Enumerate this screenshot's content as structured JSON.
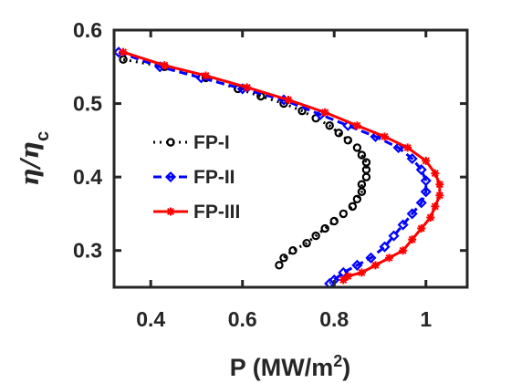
{
  "chart_data": {
    "type": "line",
    "xlabel": {
      "main": "P (MW/m",
      "sup": "2",
      "close": ")"
    },
    "ylabel": {
      "base": "η/η",
      "sub": "c"
    },
    "xlim": [
      0.32,
      1.09
    ],
    "ylim": [
      0.25,
      0.6
    ],
    "xticks": [
      0.4,
      0.6,
      0.8,
      1.0
    ],
    "xtick_labels": [
      "0.4",
      "0.6",
      "0.8",
      "1"
    ],
    "yticks": [
      0.3,
      0.4,
      0.5,
      0.6
    ],
    "ytick_labels": [
      "0.3",
      "0.4",
      "0.5",
      "0.6"
    ],
    "grid": false,
    "legend_position": "center-left",
    "series": [
      {
        "name": "FP-I",
        "color": "#000000",
        "line_style": "dotted",
        "marker": "circle",
        "x": [
          0.34,
          0.43,
          0.52,
          0.59,
          0.64,
          0.69,
          0.73,
          0.76,
          0.79,
          0.81,
          0.83,
          0.85,
          0.86,
          0.87,
          0.87,
          0.87,
          0.86,
          0.86,
          0.85,
          0.84,
          0.82,
          0.8,
          0.78,
          0.76,
          0.74,
          0.71,
          0.69,
          0.68
        ],
        "y": [
          0.56,
          0.55,
          0.535,
          0.52,
          0.51,
          0.5,
          0.49,
          0.48,
          0.47,
          0.46,
          0.45,
          0.44,
          0.43,
          0.42,
          0.41,
          0.4,
          0.39,
          0.38,
          0.37,
          0.36,
          0.35,
          0.34,
          0.33,
          0.32,
          0.31,
          0.3,
          0.29,
          0.28
        ]
      },
      {
        "name": "FP-II",
        "color": "#0000FF",
        "line_style": "dashed",
        "marker": "diamond",
        "x": [
          0.33,
          0.42,
          0.51,
          0.6,
          0.69,
          0.77,
          0.83,
          0.89,
          0.94,
          0.97,
          0.99,
          1.0,
          1.0,
          0.99,
          0.97,
          0.95,
          0.93,
          0.91,
          0.88,
          0.85,
          0.82,
          0.8,
          0.79
        ],
        "y": [
          0.57,
          0.55,
          0.535,
          0.52,
          0.505,
          0.485,
          0.47,
          0.455,
          0.44,
          0.425,
          0.41,
          0.395,
          0.38,
          0.365,
          0.35,
          0.335,
          0.32,
          0.305,
          0.29,
          0.28,
          0.27,
          0.26,
          0.255
        ]
      },
      {
        "name": "FP-III",
        "color": "#FF0000",
        "line_style": "solid",
        "marker": "asterisk",
        "x": [
          0.34,
          0.43,
          0.52,
          0.61,
          0.7,
          0.78,
          0.85,
          0.91,
          0.96,
          1.0,
          1.02,
          1.03,
          1.03,
          1.02,
          1.01,
          0.99,
          0.97,
          0.95,
          0.92,
          0.89,
          0.86,
          0.83,
          0.82
        ],
        "y": [
          0.57,
          0.552,
          0.538,
          0.522,
          0.505,
          0.488,
          0.47,
          0.455,
          0.44,
          0.422,
          0.405,
          0.39,
          0.375,
          0.36,
          0.345,
          0.33,
          0.315,
          0.3,
          0.29,
          0.28,
          0.27,
          0.265,
          0.26
        ]
      }
    ]
  }
}
